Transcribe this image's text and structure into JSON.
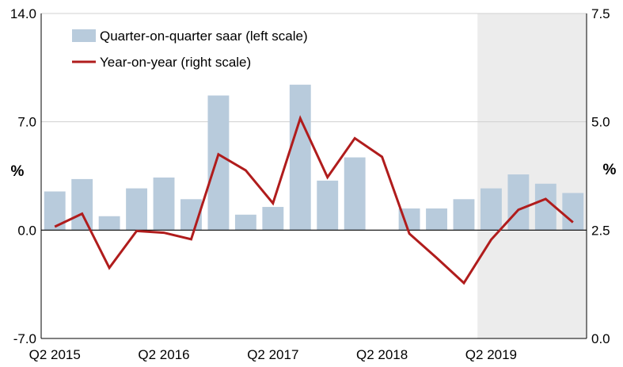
{
  "chart_data": {
    "type": "bar+line",
    "x": [
      "Q2 2015",
      "Q3 2015",
      "Q4 2015",
      "Q1 2016",
      "Q2 2016",
      "Q3 2016",
      "Q4 2016",
      "Q1 2017",
      "Q2 2017",
      "Q3 2017",
      "Q4 2017",
      "Q1 2018",
      "Q2 2018",
      "Q3 2018",
      "Q4 2018",
      "Q1 2019",
      "Q2 2019",
      "Q3 2019",
      "Q4 2019",
      "Q1 2020"
    ],
    "x_tick_labels": [
      "Q2 2015",
      "Q2 2016",
      "Q2 2017",
      "Q2 2018",
      "Q2 2019"
    ],
    "series": [
      {
        "name": "Quarter-on-quarter saar (left scale)",
        "type": "bar",
        "axis": "left",
        "color": "#b8cbdc",
        "values": [
          2.5,
          3.3,
          0.9,
          2.7,
          3.4,
          2.0,
          8.7,
          1.0,
          1.5,
          9.4,
          3.2,
          4.7,
          null,
          1.4,
          1.4,
          2.0,
          2.7,
          3.6,
          3.0,
          2.4
        ]
      },
      {
        "name": "Year-on-year (right scale)",
        "type": "line",
        "axis": "right",
        "color": "#b01c1c",
        "values": [
          2.58,
          2.88,
          1.63,
          2.48,
          2.44,
          2.29,
          4.25,
          3.88,
          3.12,
          5.08,
          3.72,
          4.62,
          4.19,
          2.42,
          1.86,
          1.28,
          2.28,
          2.97,
          3.22,
          2.68
        ]
      }
    ],
    "left_axis": {
      "label": "%",
      "ticks": [
        "14.0",
        "7.0",
        "0.0",
        "-7.0"
      ],
      "ylim": [
        -7.0,
        14.0
      ]
    },
    "right_axis": {
      "label": "%",
      "ticks": [
        "7.5",
        "5.0",
        "2.5",
        "0.0"
      ],
      "ylim": [
        0.0,
        7.5
      ]
    },
    "shaded_from": "Q2 2019",
    "shade_color": "#ececec",
    "grid": "horizontal",
    "legend_position": "top-left"
  }
}
